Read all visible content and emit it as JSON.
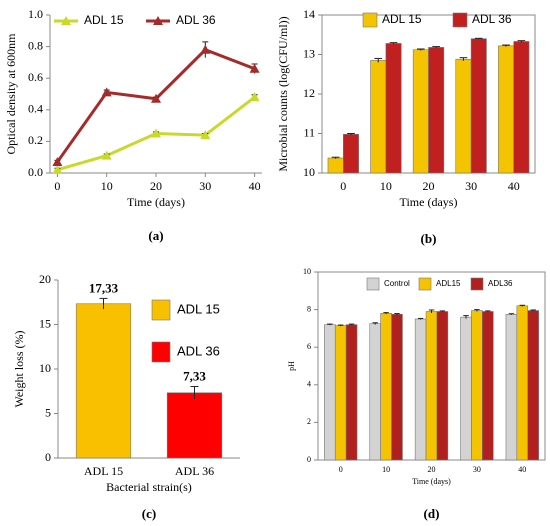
{
  "chart_data": [
    {
      "type": "line",
      "panel_label": "(a)",
      "xlabel": "Time (days)",
      "ylabel": "Optical density at 600nm",
      "x": [
        0,
        10,
        20,
        30,
        40
      ],
      "xlim": [
        -1.5,
        41.5
      ],
      "xticks": [
        0,
        10,
        20,
        30,
        40
      ],
      "ylim": [
        0,
        1
      ],
      "yticks": [
        {
          "value": 0,
          "label": "0.0"
        },
        0.2,
        0.4,
        0.6,
        0.8,
        {
          "value": 1,
          "label": "1.0"
        }
      ],
      "frame": false,
      "legend": "top-left",
      "series": [
        {
          "name": "ADL 15",
          "color": "#c9d92a",
          "values": [
            0.02,
            0.11,
            0.25,
            0.24,
            0.48
          ],
          "errors": [
            0.01,
            0.01,
            0.01,
            0.01,
            0.015
          ]
        },
        {
          "name": "ADL 36",
          "color": "#a52a2a",
          "values": [
            0.07,
            0.51,
            0.47,
            0.78,
            0.66
          ],
          "errors": [
            0.01,
            0.015,
            0.01,
            0.05,
            0.03
          ]
        }
      ]
    },
    {
      "type": "bar",
      "panel_label": "(b)",
      "xlabel": "Time (days)",
      "ylabel": "Microbial counts (log(CFU/ml))",
      "categories": [
        "0",
        "10",
        "20",
        "30",
        "40"
      ],
      "ylim": [
        10,
        14
      ],
      "yticks": [
        10,
        11,
        12,
        13,
        14
      ],
      "frame": true,
      "legend": "top",
      "series": [
        {
          "name": "ADL 15",
          "color": "#f5c400",
          "values": [
            10.38,
            12.85,
            13.12,
            12.88,
            13.22
          ],
          "errors": [
            0.02,
            0.05,
            0.02,
            0.04,
            0.02
          ]
        },
        {
          "name": "ADL 36",
          "color": "#c0201f",
          "values": [
            10.98,
            13.28,
            13.18,
            13.4,
            13.33
          ],
          "errors": [
            0.02,
            0.02,
            0.02,
            0.01,
            0.02
          ]
        }
      ]
    },
    {
      "type": "bar",
      "panel_label": "(c)",
      "xlabel": "Bacterial strain(s)",
      "ylabel": "Weight loss (%)",
      "categories": [
        "ADL 15",
        "ADL 36"
      ],
      "ylim": [
        0,
        20
      ],
      "yticks": [
        0,
        5,
        10,
        15,
        20
      ],
      "frame": false,
      "legend": "right",
      "series": [
        {
          "name": null,
          "colors": [
            "#f9c000",
            "#ff0000"
          ],
          "values": [
            17.33,
            7.33
          ],
          "value_labels": [
            "17,33",
            "7,33"
          ],
          "errors": [
            0.6,
            0.7
          ]
        }
      ]
    },
    {
      "type": "bar",
      "panel_label": "(d)",
      "xlabel": "Time (days)",
      "ylabel": "pH",
      "categories": [
        "0",
        "10",
        "20",
        "30",
        "40"
      ],
      "ylim": [
        0,
        10
      ],
      "yticks": [
        0,
        2,
        4,
        6,
        8,
        10
      ],
      "frame": true,
      "legend": "top",
      "series": [
        {
          "name": "Control",
          "color": "#d3d3d3",
          "values": [
            7.2,
            7.25,
            7.5,
            7.6,
            7.75
          ],
          "errors": [
            0.03,
            0.05,
            0.03,
            0.08,
            0.03
          ]
        },
        {
          "name": "ADL15",
          "color": "#f5c400",
          "values": [
            7.15,
            7.8,
            7.9,
            7.95,
            8.2
          ],
          "errors": [
            0.03,
            0.04,
            0.08,
            0.05,
            0.03
          ]
        },
        {
          "name": "ADL36",
          "color": "#b0201f",
          "values": [
            7.2,
            7.75,
            7.9,
            7.9,
            7.95
          ],
          "errors": [
            0.03,
            0.04,
            0.03,
            0.03,
            0.03
          ]
        }
      ]
    }
  ]
}
